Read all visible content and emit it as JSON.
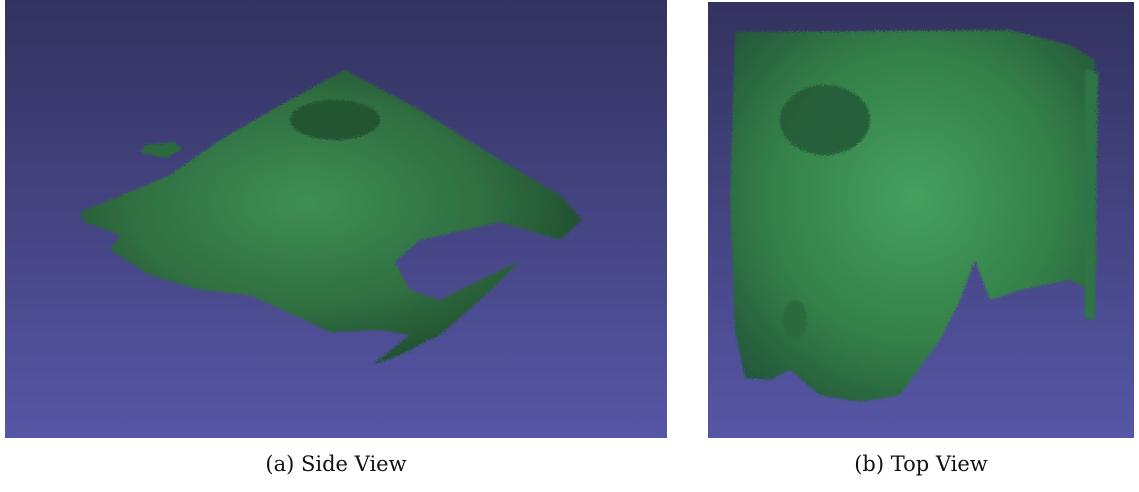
{
  "figure": {
    "panels": [
      {
        "caption": "(a) Side View"
      },
      {
        "caption": "(b) Top View"
      }
    ]
  }
}
